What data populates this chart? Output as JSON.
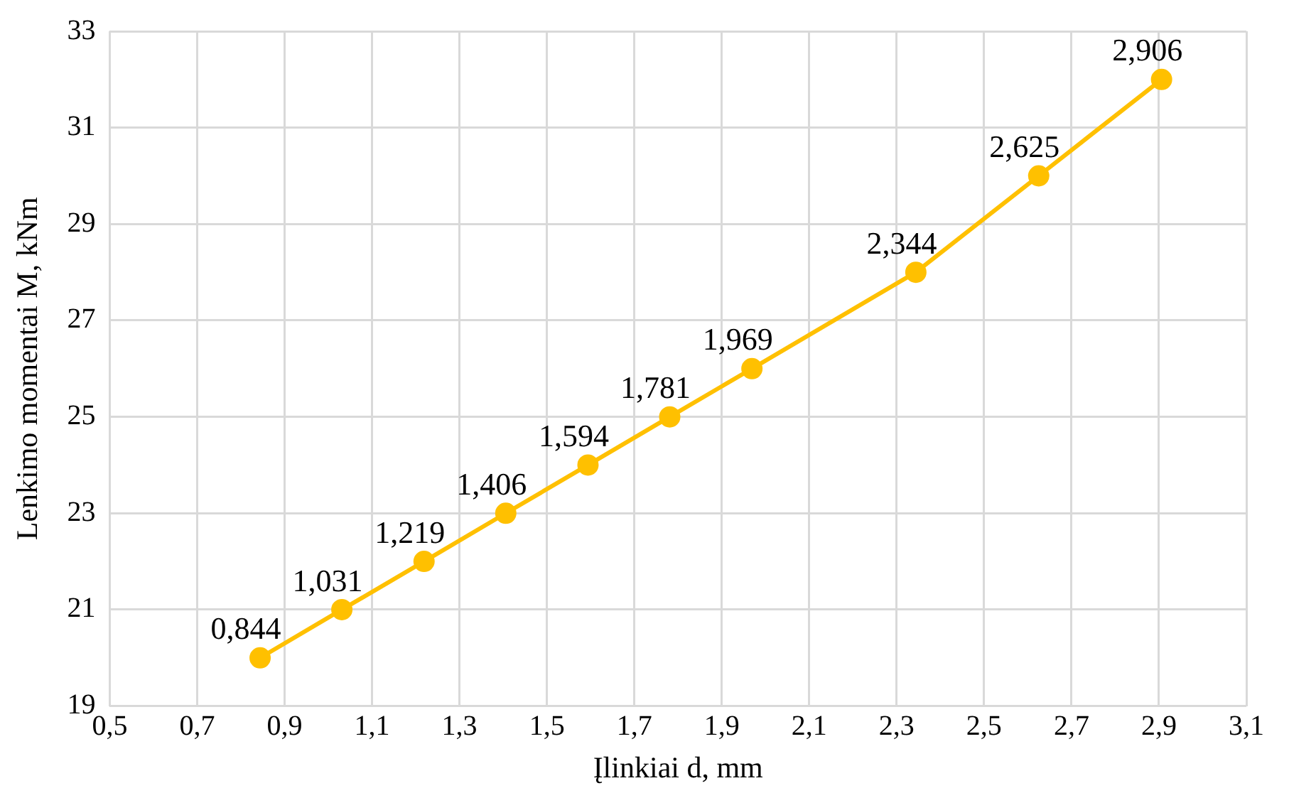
{
  "chart_data": {
    "type": "line",
    "xlabel": "Įlinkiai d, mm",
    "ylabel": "Lenkimo momentai M, kNm",
    "x": [
      0.844,
      1.031,
      1.219,
      1.406,
      1.594,
      1.781,
      1.969,
      2.344,
      2.625,
      2.906
    ],
    "series": [
      {
        "color": "#ffc000",
        "values": [
          20,
          21,
          22,
          23,
          24,
          25,
          26,
          28,
          30,
          32
        ]
      }
    ],
    "annotations": [
      {
        "text": "0,844",
        "x": 0.844,
        "y": 20
      },
      {
        "text": "1,031",
        "x": 1.031,
        "y": 21
      },
      {
        "text": "1,219",
        "x": 1.219,
        "y": 22
      },
      {
        "text": "1,406",
        "x": 1.406,
        "y": 23
      },
      {
        "text": "1,594",
        "x": 1.594,
        "y": 24
      },
      {
        "text": "1,781",
        "x": 1.781,
        "y": 25
      },
      {
        "text": "1,969",
        "x": 1.969,
        "y": 26
      },
      {
        "text": "2,344",
        "x": 2.344,
        "y": 28
      },
      {
        "text": "2,625",
        "x": 2.625,
        "y": 30
      },
      {
        "text": "2,906",
        "x": 2.906,
        "y": 32
      }
    ],
    "xlim": [
      0.5,
      3.1
    ],
    "xticks": [
      {
        "value": 0.5,
        "label": "0,5"
      },
      {
        "value": 0.7,
        "label": "0,7"
      },
      {
        "value": 0.9,
        "label": "0,9"
      },
      {
        "value": 1.1,
        "label": "1,1"
      },
      {
        "value": 1.3,
        "label": "1,3"
      },
      {
        "value": 1.5,
        "label": "1,5"
      },
      {
        "value": 1.7,
        "label": "1,7"
      },
      {
        "value": 1.9,
        "label": "1,9"
      },
      {
        "value": 2.1,
        "label": "2,1"
      },
      {
        "value": 2.3,
        "label": "2,3"
      },
      {
        "value": 2.5,
        "label": "2,5"
      },
      {
        "value": 2.7,
        "label": "2,7"
      },
      {
        "value": 2.9,
        "label": "2,9"
      },
      {
        "value": 3.1,
        "label": "3,1"
      }
    ],
    "ylim": [
      19,
      33
    ],
    "yticks": [
      19,
      21,
      23,
      25,
      27,
      29,
      31,
      33
    ],
    "grid": true,
    "legend": false,
    "marker": "circle",
    "line_style": "solid"
  }
}
